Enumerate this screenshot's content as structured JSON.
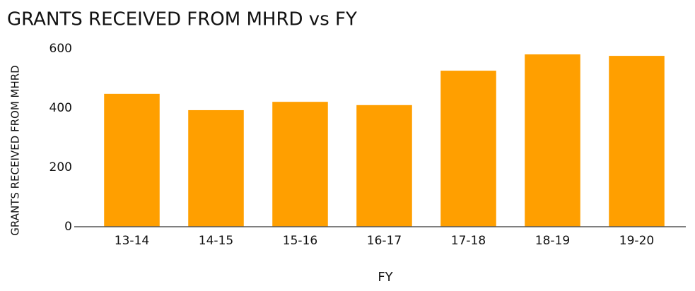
{
  "chart_data": {
    "type": "bar",
    "title": "GRANTS RECEIVED FROM MHRD vs FY",
    "x_label": "FY",
    "y_label": "GRANTS RECEIVED FROM MHRD",
    "categories": [
      "13-14",
      "14-15",
      "15-16",
      "16-17",
      "17-18",
      "18-19",
      "19-20"
    ],
    "values": [
      448,
      393,
      421,
      410,
      526,
      581,
      576
    ],
    "color": "#ff9f00",
    "ylim": [
      0,
      600
    ],
    "yticks": [
      0,
      200,
      400,
      600
    ],
    "grid": false
  }
}
